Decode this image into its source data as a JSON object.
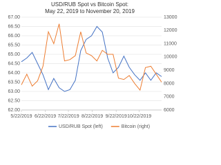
{
  "chart_data": {
    "type": "line",
    "title": "USD/RUB Spot vs Bitcoin Spot:",
    "subtitle": "May 22, 2019 to November 20, 2019",
    "x": [
      "5/22/2019",
      "5/29/2019",
      "6/5/2019",
      "6/12/2019",
      "6/19/2019",
      "6/26/2019",
      "7/3/2019",
      "7/10/2019",
      "7/17/2019",
      "7/24/2019",
      "7/31/2019",
      "8/7/2019",
      "8/14/2019",
      "8/21/2019",
      "8/28/2019",
      "9/4/2019",
      "9/11/2019",
      "9/18/2019",
      "9/25/2019",
      "10/2/2019",
      "10/9/2019",
      "10/16/2019",
      "10/23/2019",
      "10/30/2019",
      "11/6/2019",
      "11/13/2019",
      "11/20/2019"
    ],
    "series": [
      {
        "name": "USD/RUB Spot (left)",
        "color": "#4472c4",
        "values": [
          64.6,
          64.8,
          65.1,
          64.5,
          63.9,
          63.1,
          63.7,
          63.2,
          63.0,
          63.1,
          63.6,
          65.2,
          65.8,
          66.0,
          66.5,
          66.2,
          64.8,
          64.0,
          64.3,
          64.9,
          64.3,
          63.9,
          63.6,
          64.0,
          63.6,
          64.0,
          63.8
        ]
      },
      {
        "name": "Bitcoin (right)",
        "color": "#ed7d31",
        "axis": "y2",
        "values": [
          7900,
          8700,
          7800,
          8200,
          9300,
          11900,
          11000,
          12500,
          9700,
          9800,
          10100,
          11900,
          10300,
          10100,
          9700,
          10500,
          10200,
          10200,
          8400,
          8300,
          8600,
          8000,
          7500,
          9200,
          9300,
          8700,
          8100
        ]
      }
    ],
    "xlim": [
      "5/22/2019",
      "11/20/2019"
    ],
    "xticks": [
      "5/22/2019",
      "6/22/2019",
      "7/22/2019",
      "8/22/2019",
      "9/22/2019",
      "10/22/2019"
    ],
    "ylim": [
      62,
      67
    ],
    "yticks": [
      {
        "value": 62,
        "label": "62.00"
      },
      {
        "value": 62.5,
        "label": "62.50"
      },
      {
        "value": 63,
        "label": "63.00"
      },
      {
        "value": 63.5,
        "label": "63.50"
      },
      {
        "value": 64,
        "label": "64.00"
      },
      {
        "value": 64.5,
        "label": "64.50"
      },
      {
        "value": 65,
        "label": "65.00"
      },
      {
        "value": 65.5,
        "label": "65.50"
      },
      {
        "value": 66,
        "label": "66.00"
      },
      {
        "value": 66.5,
        "label": "66.50"
      },
      {
        "value": 67,
        "label": "67.00"
      }
    ],
    "y2lim": [
      6000,
      13000
    ],
    "y2ticks": [
      6000,
      7000,
      8000,
      9000,
      10000,
      11000,
      12000,
      13000
    ],
    "grid": true,
    "legend": "bottom"
  }
}
